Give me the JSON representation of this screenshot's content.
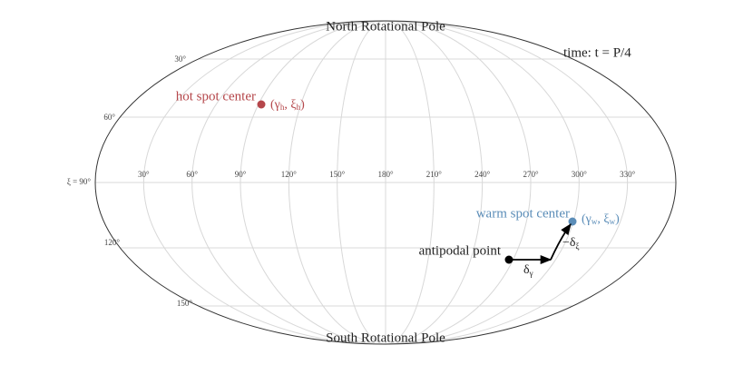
{
  "north_pole": "North Rotational Pole",
  "south_pole": "South Rotational Pole",
  "time_label": "time: t = P/4",
  "longitude_labels": [
    "30°",
    "60°",
    "90°",
    "120°",
    "150°",
    "180°",
    "210°",
    "240°",
    "270°",
    "300°",
    "330°"
  ],
  "latitude_labels": [
    "30°",
    "60°",
    "ξ = 90°",
    "120°",
    "150°"
  ],
  "hot_spot": {
    "label": "hot spot center",
    "coords": [
      "(γ",
      "h",
      ", ξ",
      "h",
      ")"
    ]
  },
  "warm_spot": {
    "label": "warm spot center",
    "coords": [
      "(γ",
      "w",
      ", ξ",
      "w",
      ")"
    ]
  },
  "antipodal": {
    "label": "antipodal point",
    "delta_gamma": [
      "δ",
      "γ"
    ],
    "delta_xi": [
      "−δ",
      "ξ"
    ]
  }
}
